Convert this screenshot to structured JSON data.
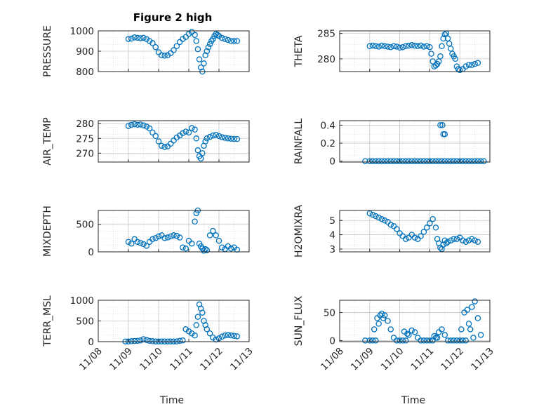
{
  "figure_title": "Figure 2 high",
  "xlabel": "Time",
  "x_tick_labels": [
    "11/08",
    "11/09",
    "11/10",
    "11/11",
    "11/12",
    "11/13"
  ],
  "marker_color": "#0072BD",
  "chart_data": [
    {
      "type": "scatter",
      "ylabel": "PRESSURE",
      "ylim": [
        800,
        1000
      ],
      "yticks": [
        800,
        900,
        1000
      ],
      "xlim": [
        0,
        5
      ],
      "grid": true,
      "x": [
        1.0,
        1.1,
        1.2,
        1.3,
        1.4,
        1.5,
        1.6,
        1.7,
        1.8,
        1.9,
        2.0,
        2.1,
        2.2,
        2.3,
        2.4,
        2.5,
        2.6,
        2.7,
        2.8,
        2.9,
        3.0,
        3.1,
        3.2,
        3.25,
        3.3,
        3.35,
        3.4,
        3.45,
        3.5,
        3.55,
        3.6,
        3.65,
        3.7,
        3.75,
        3.8,
        3.85,
        3.9,
        3.95,
        4.0,
        4.1,
        4.2,
        4.3,
        4.4,
        4.5,
        4.6
      ],
      "y": [
        960,
        962,
        968,
        966,
        964,
        966,
        960,
        950,
        940,
        920,
        895,
        880,
        878,
        880,
        890,
        905,
        925,
        945,
        960,
        970,
        985,
        995,
        980,
        950,
        910,
        860,
        820,
        800,
        840,
        880,
        900,
        920,
        935,
        950,
        960,
        975,
        985,
        980,
        975,
        965,
        960,
        955,
        950,
        950,
        950
      ]
    },
    {
      "type": "scatter",
      "ylabel": "THETA",
      "ylim": [
        277.5,
        285.5
      ],
      "yticks": [
        280,
        285
      ],
      "xlim": [
        0,
        5
      ],
      "grid": true,
      "x": [
        1.0,
        1.1,
        1.2,
        1.3,
        1.4,
        1.5,
        1.6,
        1.7,
        1.8,
        1.9,
        2.0,
        2.1,
        2.2,
        2.3,
        2.4,
        2.5,
        2.6,
        2.7,
        2.8,
        2.9,
        3.0,
        3.05,
        3.1,
        3.15,
        3.2,
        3.25,
        3.3,
        3.35,
        3.4,
        3.45,
        3.5,
        3.55,
        3.6,
        3.65,
        3.7,
        3.75,
        3.8,
        3.85,
        3.9,
        3.95,
        4.0,
        4.1,
        4.2,
        4.3,
        4.4,
        4.5,
        4.6
      ],
      "y": [
        282.5,
        282.6,
        282.5,
        282.4,
        282.6,
        282.5,
        282.4,
        282.3,
        282.5,
        282.4,
        282.2,
        282.3,
        282.5,
        282.6,
        282.7,
        282.6,
        282.5,
        282.6,
        282.4,
        282.5,
        282.3,
        281.0,
        279.5,
        278.5,
        278.7,
        279.0,
        279.5,
        280.5,
        282.5,
        284.0,
        284.8,
        285.0,
        284.0,
        283.0,
        282.0,
        281.0,
        280.5,
        280.0,
        278.5,
        278.0,
        277.8,
        278.0,
        278.5,
        278.8,
        278.8,
        279.0,
        279.2
      ]
    },
    {
      "type": "scatter",
      "ylabel": "AIR_TEMP",
      "ylim": [
        267,
        281
      ],
      "yticks": [
        270,
        275,
        280
      ],
      "xlim": [
        0,
        5
      ],
      "grid": true,
      "x": [
        1.0,
        1.1,
        1.2,
        1.3,
        1.4,
        1.5,
        1.6,
        1.7,
        1.8,
        1.9,
        2.0,
        2.1,
        2.2,
        2.3,
        2.4,
        2.5,
        2.6,
        2.7,
        2.8,
        2.9,
        3.0,
        3.1,
        3.2,
        3.25,
        3.3,
        3.35,
        3.4,
        3.45,
        3.5,
        3.55,
        3.6,
        3.7,
        3.8,
        3.9,
        4.0,
        4.1,
        4.2,
        4.3,
        4.4,
        4.5,
        4.6
      ],
      "y": [
        279.2,
        279.6,
        279.8,
        279.6,
        279.7,
        279.4,
        279.0,
        278.4,
        277.0,
        275.8,
        274.0,
        272.5,
        272.1,
        272.3,
        273.2,
        274.3,
        275.3,
        276.0,
        276.8,
        277.3,
        277.0,
        278.5,
        278.0,
        275.0,
        271.0,
        269.0,
        268.2,
        270.0,
        272.5,
        274.0,
        275.0,
        275.5,
        276.0,
        276.2,
        275.8,
        275.4,
        275.2,
        275.0,
        274.9,
        274.8,
        274.8
      ]
    },
    {
      "type": "scatter",
      "ylabel": "RAINFALL",
      "ylim": [
        -0.01,
        0.45
      ],
      "yticks": [
        0,
        0.2,
        0.4
      ],
      "xlim": [
        0,
        5
      ],
      "grid": true,
      "x": [
        0.85,
        1.0,
        1.1,
        1.2,
        1.3,
        1.4,
        1.5,
        1.6,
        1.7,
        1.8,
        1.9,
        2.0,
        2.1,
        2.2,
        2.3,
        2.4,
        2.5,
        2.6,
        2.7,
        2.8,
        2.9,
        3.0,
        3.1,
        3.2,
        3.3,
        3.4,
        3.5,
        3.6,
        3.7,
        3.8,
        3.9,
        4.0,
        4.1,
        4.2,
        4.3,
        4.4,
        4.5,
        4.6,
        4.7,
        4.8,
        3.35,
        3.42,
        3.45,
        3.5
      ],
      "y": [
        0,
        0,
        0,
        0,
        0,
        0,
        0,
        0,
        0,
        0,
        0,
        0,
        0,
        0,
        0,
        0,
        0,
        0,
        0,
        0,
        0,
        0,
        0,
        0,
        0,
        0,
        0,
        0,
        0,
        0,
        0,
        0,
        0,
        0,
        0,
        0,
        0,
        0,
        0,
        0,
        0.4,
        0.4,
        0.3,
        0.3
      ]
    },
    {
      "type": "scatter",
      "ylabel": "MIXDEPTH",
      "ylim": [
        0,
        750
      ],
      "yticks": [
        0,
        500
      ],
      "xlim": [
        0,
        5
      ],
      "grid": true,
      "x": [
        1.0,
        1.1,
        1.2,
        1.3,
        1.4,
        1.5,
        1.6,
        1.7,
        1.8,
        1.9,
        2.0,
        2.1,
        2.2,
        2.3,
        2.4,
        2.5,
        2.6,
        2.7,
        2.8,
        2.9,
        3.0,
        3.1,
        3.2,
        3.25,
        3.3,
        3.35,
        3.4,
        3.45,
        3.5,
        3.55,
        3.6,
        3.7,
        3.8,
        3.9,
        4.0,
        4.1,
        4.2,
        4.3,
        4.4,
        4.5,
        4.6
      ],
      "y": [
        180,
        150,
        230,
        180,
        160,
        140,
        110,
        180,
        230,
        250,
        280,
        300,
        250,
        260,
        280,
        300,
        290,
        260,
        80,
        60,
        200,
        150,
        550,
        700,
        750,
        150,
        100,
        60,
        20,
        50,
        30,
        300,
        380,
        300,
        200,
        80,
        50,
        100,
        60,
        80,
        40
      ]
    },
    {
      "type": "scatter",
      "ylabel": "H2OMIXRA",
      "ylim": [
        2.8,
        5.7
      ],
      "yticks": [
        3,
        4,
        5
      ],
      "xlim": [
        0,
        5
      ],
      "grid": true,
      "x": [
        1.0,
        1.1,
        1.2,
        1.3,
        1.4,
        1.5,
        1.6,
        1.7,
        1.8,
        1.9,
        2.0,
        2.1,
        2.2,
        2.3,
        2.4,
        2.5,
        2.6,
        2.7,
        2.8,
        2.9,
        3.0,
        3.1,
        3.2,
        3.25,
        3.3,
        3.35,
        3.4,
        3.45,
        3.5,
        3.55,
        3.6,
        3.7,
        3.8,
        3.9,
        4.0,
        4.1,
        4.2,
        4.3,
        4.4,
        4.5,
        4.6
      ],
      "y": [
        5.5,
        5.4,
        5.3,
        5.2,
        5.1,
        5.0,
        4.9,
        4.7,
        4.6,
        4.4,
        4.1,
        3.9,
        3.7,
        3.8,
        4.0,
        3.8,
        3.7,
        3.9,
        4.2,
        4.5,
        4.8,
        5.1,
        4.5,
        3.7,
        3.4,
        3.1,
        3.0,
        3.3,
        3.6,
        3.4,
        3.5,
        3.6,
        3.7,
        3.7,
        3.8,
        3.6,
        3.5,
        3.6,
        3.7,
        3.6,
        3.5
      ]
    },
    {
      "type": "scatter",
      "ylabel": "TERR_MSL",
      "ylim": [
        0,
        1000
      ],
      "yticks": [
        0,
        500,
        1000
      ],
      "xlim": [
        0,
        5
      ],
      "grid": true,
      "x": [
        0.9,
        1.0,
        1.1,
        1.2,
        1.3,
        1.4,
        1.5,
        1.6,
        1.7,
        1.8,
        1.9,
        2.0,
        2.1,
        2.2,
        2.3,
        2.4,
        2.5,
        2.6,
        2.7,
        2.8,
        2.9,
        3.0,
        3.1,
        3.2,
        3.25,
        3.3,
        3.35,
        3.4,
        3.45,
        3.5,
        3.55,
        3.6,
        3.7,
        3.8,
        3.9,
        4.0,
        4.1,
        4.2,
        4.3,
        4.4,
        4.5,
        4.6
      ],
      "y": [
        5,
        5,
        10,
        15,
        20,
        30,
        60,
        40,
        20,
        10,
        5,
        5,
        5,
        5,
        5,
        5,
        5,
        5,
        20,
        30,
        300,
        250,
        200,
        150,
        400,
        600,
        900,
        800,
        700,
        500,
        400,
        300,
        200,
        100,
        50,
        80,
        120,
        150,
        160,
        150,
        140,
        130
      ]
    },
    {
      "type": "scatter",
      "ylabel": "SUN_FLUX",
      "ylim": [
        -2,
        72
      ],
      "yticks": [
        0,
        50
      ],
      "xlim": [
        0,
        5
      ],
      "grid": true,
      "x": [
        0.85,
        1.0,
        1.1,
        1.2,
        1.3,
        1.4,
        1.5,
        1.6,
        1.7,
        1.8,
        1.9,
        2.0,
        2.1,
        2.2,
        2.3,
        2.4,
        2.5,
        2.6,
        2.7,
        2.8,
        2.9,
        3.0,
        3.1,
        3.2,
        3.3,
        3.4,
        3.5,
        3.6,
        3.7,
        3.8,
        3.9,
        4.0,
        4.1,
        4.2,
        4.3,
        4.4,
        4.5,
        4.6,
        4.7,
        1.15,
        1.25,
        1.35,
        1.45,
        2.15,
        2.25,
        3.15,
        3.25,
        4.05,
        4.15,
        4.25,
        4.35,
        4.45
      ],
      "y": [
        0,
        0,
        0,
        0,
        30,
        48,
        45,
        35,
        20,
        5,
        0,
        0,
        0,
        0,
        10,
        18,
        15,
        5,
        0,
        0,
        0,
        0,
        0,
        5,
        15,
        20,
        10,
        0,
        0,
        0,
        0,
        0,
        0,
        0,
        30,
        60,
        70,
        40,
        10,
        20,
        40,
        45,
        40,
        16,
        12,
        8,
        5,
        20,
        50,
        55,
        20,
        5
      ]
    }
  ]
}
